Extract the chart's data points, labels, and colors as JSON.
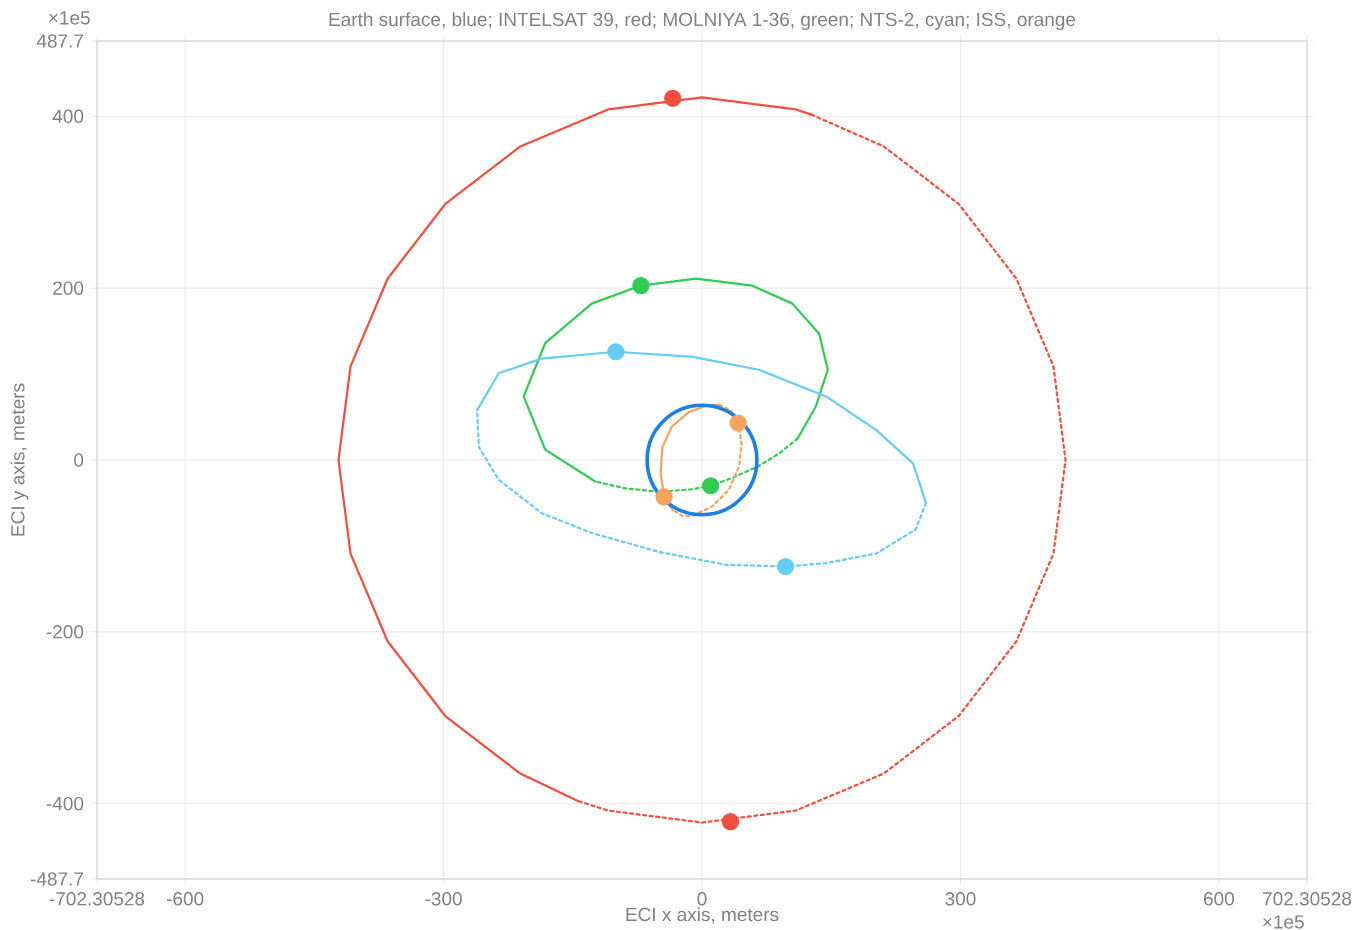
{
  "chart_data": {
    "type": "line",
    "title": "Earth surface, blue; INTELSAT 39, red; MOLNIYA 1-36, green; NTS-2, cyan; ISS, orange",
    "xlabel": "ECI x axis, meters",
    "ylabel": "ECI y axis, meters",
    "annotations": [
      "×1e5",
      "×1e5"
    ],
    "xlim": [
      -702.30528,
      702.30528
    ],
    "ylim": [
      -487.7,
      487.7
    ],
    "xticks": [
      -702.30528,
      -600,
      -300,
      0,
      300,
      600,
      702.30528
    ],
    "yticks": [
      -487.7,
      -400,
      -200,
      0,
      200,
      400,
      487.7
    ],
    "grid": true,
    "series": [
      {
        "type": "line",
        "color": "#f44d3d",
        "line_style": "solid",
        "x": [
          -144,
          -211,
          -298,
          -365,
          -408,
          -422,
          -408,
          -365,
          -298,
          -211,
          -109,
          0,
          109,
          127
        ],
        "values": [
          -397,
          -365,
          -298,
          -211,
          -109,
          0,
          109,
          211,
          298,
          365,
          408,
          422,
          408,
          402
        ]
      },
      {
        "type": "line",
        "color": "#f44d3d",
        "line_style": "dotted",
        "x": [
          127,
          211,
          298,
          365,
          408,
          422,
          408,
          365,
          298,
          211,
          109,
          0,
          -109,
          -144
        ],
        "values": [
          402,
          365,
          298,
          211,
          109,
          0,
          -109,
          -211,
          -298,
          -365,
          -408,
          -422,
          -408,
          -397
        ]
      },
      {
        "type": "line",
        "color": "#2ecc52",
        "line_style": "solid",
        "x": [
          -124,
          -182,
          -207,
          -182,
          -128,
          -71,
          -7,
          58,
          105,
          136,
          146,
          132,
          111
        ],
        "values": [
          -25,
          12,
          74,
          136,
          182,
          203,
          211,
          203,
          182,
          147,
          105,
          62,
          25
        ]
      },
      {
        "type": "line",
        "color": "#2ecc52",
        "line_style": "dotted",
        "x": [
          111,
          90,
          66,
          35,
          10,
          -11,
          -50,
          -89,
          -124
        ],
        "values": [
          25,
          8,
          -7,
          -21,
          -30,
          -34,
          -37,
          -33,
          -25
        ]
      },
      {
        "type": "line",
        "color": "#66ccf5",
        "line_style": "solid",
        "x": [
          -261,
          -236,
          -186,
          -100,
          -11,
          66,
          144,
          202,
          245,
          260
        ],
        "values": [
          58,
          101,
          118,
          126,
          120,
          105,
          74,
          35,
          -4,
          -50
        ]
      },
      {
        "type": "line",
        "color": "#66ccf5",
        "line_style": "dotted",
        "x": [
          260,
          248,
          202,
          144,
          97,
          28,
          -50,
          -128,
          -186,
          -236,
          -259,
          -261
        ],
        "values": [
          -50,
          -81,
          -109,
          -120,
          -124,
          -122,
          -107,
          -85,
          -62,
          -23,
          15,
          58
        ]
      },
      {
        "type": "line",
        "color": "#f7a35c",
        "line_style": "solid",
        "x": [
          -34,
          -44,
          -48,
          -46,
          -35,
          -15,
          8,
          20
        ],
        "values": [
          -58,
          -43,
          -15,
          15,
          39,
          56,
          64,
          64
        ]
      },
      {
        "type": "line",
        "color": "#f7a35c",
        "line_style": "dotted",
        "x": [
          20,
          33,
          42,
          46,
          43,
          31,
          12,
          -11,
          -23,
          -34
        ],
        "values": [
          64,
          58,
          43,
          19,
          -8,
          -35,
          -54,
          -65,
          -65,
          -58
        ]
      },
      {
        "type": "scatter",
        "marker": "circle",
        "color": "#f44d3d",
        "x": [
          -34,
          33
        ],
        "values": [
          421,
          -421
        ]
      },
      {
        "type": "scatter",
        "marker": "circle",
        "color": "#2ecc52",
        "x": [
          -71,
          10
        ],
        "values": [
          203,
          -30
        ]
      },
      {
        "type": "scatter",
        "marker": "circle",
        "color": "#66ccf5",
        "x": [
          -100,
          97
        ],
        "values": [
          126,
          -124
        ]
      },
      {
        "type": "scatter",
        "marker": "circle",
        "color": "#f7a35c",
        "x": [
          -44,
          42
        ],
        "values": [
          -43,
          43
        ]
      }
    ]
  }
}
